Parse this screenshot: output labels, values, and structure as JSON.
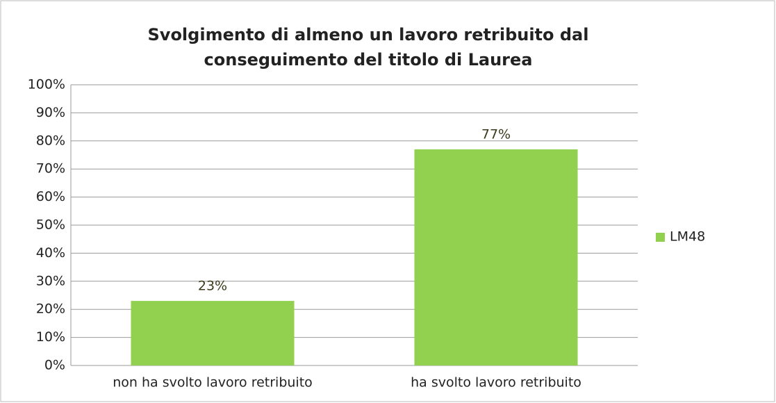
{
  "chart_data": {
    "type": "bar",
    "title": "Svolgimento di almeno un lavoro retribuito dal conseguimento del titolo di Laurea",
    "categories": [
      "non ha svolto lavoro retribuito",
      "ha svolto lavoro retribuito"
    ],
    "series": [
      {
        "name": "LM48",
        "color": "#92d050",
        "values": [
          23,
          77
        ],
        "value_labels": [
          "23%",
          "77%"
        ]
      }
    ],
    "ylim": [
      0,
      100
    ],
    "yticks": [
      {
        "value": 0,
        "label": "0%"
      },
      {
        "value": 10,
        "label": "10%"
      },
      {
        "value": 20,
        "label": "20%"
      },
      {
        "value": 30,
        "label": "30%"
      },
      {
        "value": 40,
        "label": "40%"
      },
      {
        "value": 50,
        "label": "50%"
      },
      {
        "value": 60,
        "label": "60%"
      },
      {
        "value": 70,
        "label": "70%"
      },
      {
        "value": 80,
        "label": "80%"
      },
      {
        "value": 90,
        "label": "90%"
      },
      {
        "value": 100,
        "label": "100%"
      }
    ],
    "grid": true,
    "legend": "right"
  }
}
